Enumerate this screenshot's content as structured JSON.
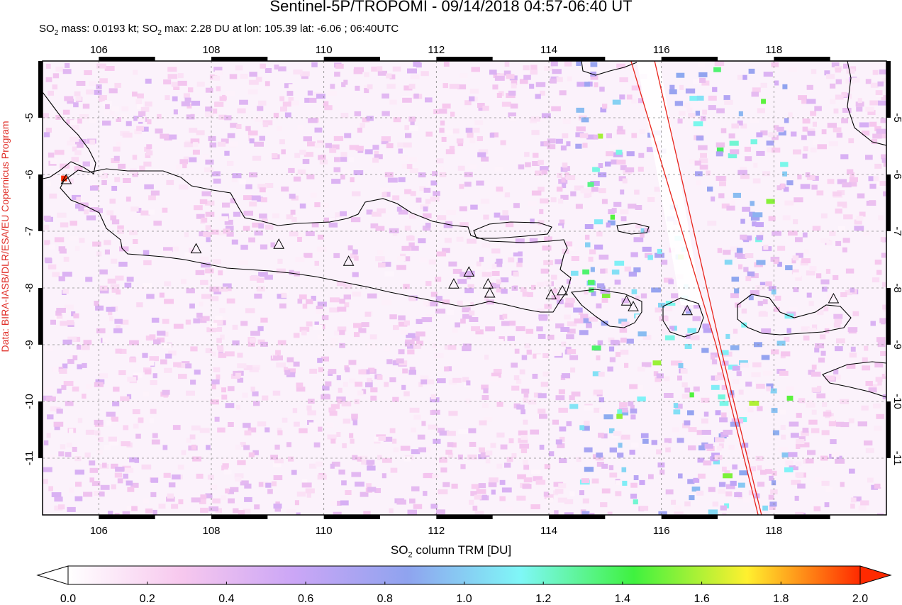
{
  "header": {
    "title": "Sentinel-5P/TROPOMI - 09/14/2018 04:57-06:40 UT",
    "stats_prefix_1": "SO",
    "stats_mid_1": " mass: 0.0193 kt; SO",
    "stats_mid_2": " max: 2.28 DU at lon: 105.39 lat: -6.06 ; 06:40UTC",
    "subscript": "2"
  },
  "credit": "Data: BIRA-IASB/DLR/ESA/EU Copernicus Program",
  "map": {
    "lon_range": [
      105,
      120
    ],
    "lat_range": [
      -12,
      -4
    ],
    "lon_ticks": [
      "106",
      "108",
      "110",
      "112",
      "114",
      "116",
      "118"
    ],
    "lat_ticks": [
      "-5",
      "-6",
      "-7",
      "-8",
      "-9",
      "-10",
      "-11"
    ],
    "volcanoes": [
      {
        "lon": 105.42,
        "lat": -6.1
      },
      {
        "lon": 107.73,
        "lat": -7.32
      },
      {
        "lon": 109.2,
        "lat": -7.24
      },
      {
        "lon": 110.44,
        "lat": -7.54
      },
      {
        "lon": 112.31,
        "lat": -7.94
      },
      {
        "lon": 112.58,
        "lat": -7.73
      },
      {
        "lon": 112.92,
        "lat": -7.94
      },
      {
        "lon": 112.95,
        "lat": -8.1
      },
      {
        "lon": 114.04,
        "lat": -8.13
      },
      {
        "lon": 114.24,
        "lat": -8.06
      },
      {
        "lon": 115.38,
        "lat": -8.24
      },
      {
        "lon": 115.5,
        "lat": -8.34
      },
      {
        "lon": 116.46,
        "lat": -8.41
      },
      {
        "lon": 119.06,
        "lat": -8.2
      }
    ],
    "swath_edge_lines": [
      {
        "lon1": 115.46,
        "lat1": -4.0,
        "lon2": 116.97,
        "lat2": -9.0
      },
      {
        "lon1": 115.88,
        "lat1": -4.0,
        "lon2": 117.04,
        "lat2": -9.0
      },
      {
        "lon1": 116.97,
        "lat1": -9.0,
        "lon2": 117.72,
        "lat2": -12.0
      },
      {
        "lon1": 117.04,
        "lat1": -9.0,
        "lon2": 117.78,
        "lat2": -12.0
      }
    ],
    "swath_line_color": "#e8241c"
  },
  "colorbar": {
    "title_prefix": "SO",
    "title_suffix": " column TRM [DU]",
    "subscript": "2",
    "ticks": [
      "0.0",
      "0.2",
      "0.4",
      "0.6",
      "0.8",
      "1.0",
      "1.2",
      "1.4",
      "1.6",
      "1.8",
      "2.0"
    ],
    "min": 0.0,
    "max": 2.0,
    "under_color": "#ffffff",
    "over_color": "#ff2a00",
    "stops": [
      "#ffffff",
      "#f7c8ee",
      "#cba6f6",
      "#8fa3ef",
      "#7ff7f7",
      "#3ff23f",
      "#fff02f",
      "#ff2a00"
    ]
  }
}
